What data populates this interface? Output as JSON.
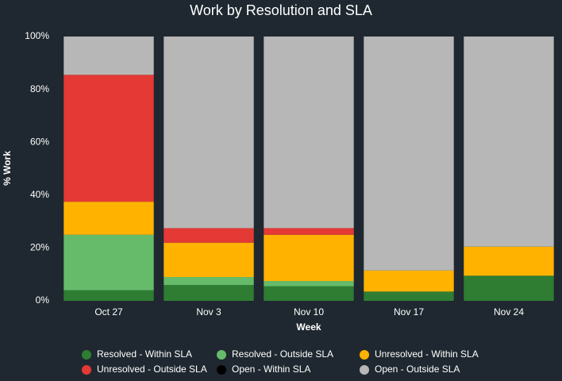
{
  "chart_data": {
    "type": "stacked-bar",
    "title": "Work by Resolution and SLA",
    "x_label": "Week",
    "y_label": "% Work",
    "categories": [
      "Oct 27",
      "Nov 3",
      "Nov 10",
      "Nov 17",
      "Nov 24"
    ],
    "series": [
      {
        "name": "Resolved - Within SLA",
        "color": "#2e7d32",
        "values": [
          4,
          6,
          5.5,
          3.5,
          9.5
        ]
      },
      {
        "name": "Resolved - Outside SLA",
        "color": "#66bb6a",
        "values": [
          21,
          3,
          2,
          0,
          0
        ]
      },
      {
        "name": "Unresolved - Within SLA",
        "color": "#ffb300",
        "values": [
          12.5,
          13,
          17.5,
          8,
          11
        ]
      },
      {
        "name": "Unresolved - Outside SLA",
        "color": "#e53935",
        "values": [
          48,
          5.5,
          2.5,
          0,
          0
        ]
      },
      {
        "name": "Open - Within SLA",
        "color": "#000000",
        "values": [
          0,
          0,
          0,
          0,
          0
        ]
      },
      {
        "name": "Open - Outside SLA",
        "color": "#b7b7b7",
        "values": [
          14.5,
          72.5,
          72.5,
          88.5,
          79.5
        ]
      }
    ],
    "ylim": [
      0,
      100
    ],
    "yticks": [
      {
        "value": 0,
        "label": "0%"
      },
      {
        "value": 20,
        "label": "20%"
      },
      {
        "value": 40,
        "label": "40%"
      },
      {
        "value": 60,
        "label": "60%"
      },
      {
        "value": 80,
        "label": "80%"
      },
      {
        "value": 100,
        "label": "100%"
      }
    ]
  }
}
